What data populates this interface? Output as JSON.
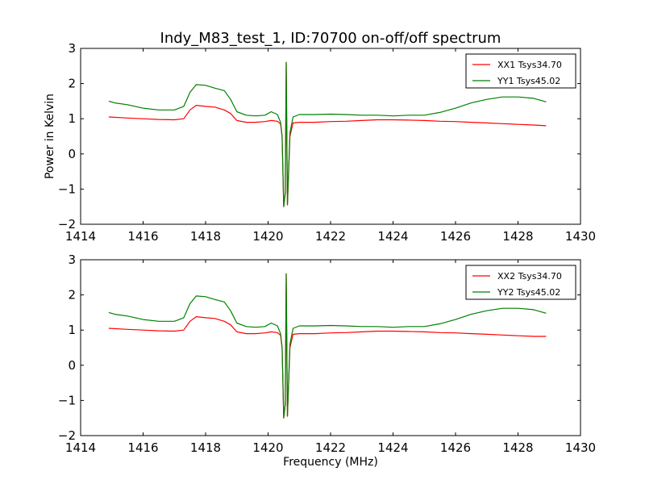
{
  "title": "Indy_M83_test_1, ID:70700 on-off/off spectrum",
  "xlabel": "Frequency (MHz)",
  "ylabel": "Power in Kelvin",
  "colors": {
    "xx": "#ff0000",
    "yy": "#008000",
    "axes": "#000000",
    "background": "#ffffff"
  },
  "chart_data": [
    {
      "type": "line",
      "xlim": [
        1414,
        1430
      ],
      "ylim": [
        -2,
        3
      ],
      "xticks": [
        1414,
        1416,
        1418,
        1420,
        1422,
        1424,
        1426,
        1428,
        1430
      ],
      "yticks": [
        -2,
        -1,
        0,
        1,
        2,
        3
      ],
      "ytick_labels": [
        "−2",
        "−1",
        "0",
        "1",
        "2",
        "3"
      ],
      "legend_position": "top-right",
      "grid": false,
      "series": [
        {
          "name": "XX1 Tsys34.70",
          "color": "#ff0000",
          "x": [
            1414.9,
            1415.5,
            1416.0,
            1416.5,
            1417.0,
            1417.3,
            1417.5,
            1417.7,
            1418.0,
            1418.3,
            1418.6,
            1418.8,
            1419.0,
            1419.3,
            1419.6,
            1419.9,
            1420.1,
            1420.3,
            1420.4,
            1420.45,
            1420.5,
            1420.55,
            1420.58,
            1420.62,
            1420.7,
            1420.8,
            1421.0,
            1421.5,
            1422.0,
            1422.5,
            1423.0,
            1423.5,
            1424.0,
            1424.5,
            1425.0,
            1425.5,
            1426.0,
            1426.5,
            1427.0,
            1427.5,
            1428.0,
            1428.5,
            1428.9
          ],
          "y": [
            1.05,
            1.02,
            1.0,
            0.98,
            0.97,
            1.0,
            1.25,
            1.38,
            1.35,
            1.33,
            1.25,
            1.15,
            0.95,
            0.9,
            0.9,
            0.92,
            0.95,
            0.93,
            0.85,
            0.5,
            -1.5,
            -1.1,
            2.6,
            -1.45,
            0.5,
            0.88,
            0.9,
            0.9,
            0.92,
            0.93,
            0.95,
            0.97,
            0.97,
            0.96,
            0.95,
            0.93,
            0.92,
            0.9,
            0.88,
            0.86,
            0.84,
            0.82,
            0.8
          ]
        },
        {
          "name": "YY1 Tsys45.02",
          "color": "#008000",
          "x": [
            1414.9,
            1415.1,
            1415.5,
            1416.0,
            1416.5,
            1417.0,
            1417.3,
            1417.5,
            1417.7,
            1418.0,
            1418.3,
            1418.6,
            1418.8,
            1419.0,
            1419.3,
            1419.6,
            1419.9,
            1420.1,
            1420.3,
            1420.4,
            1420.45,
            1420.5,
            1420.55,
            1420.58,
            1420.62,
            1420.7,
            1420.8,
            1421.0,
            1421.5,
            1422.0,
            1422.5,
            1423.0,
            1423.5,
            1424.0,
            1424.5,
            1425.0,
            1425.5,
            1426.0,
            1426.5,
            1427.0,
            1427.5,
            1428.0,
            1428.5,
            1428.9
          ],
          "y": [
            1.5,
            1.45,
            1.4,
            1.3,
            1.25,
            1.25,
            1.35,
            1.75,
            1.97,
            1.95,
            1.87,
            1.8,
            1.55,
            1.2,
            1.1,
            1.08,
            1.1,
            1.2,
            1.12,
            0.9,
            0.5,
            -1.5,
            -1.1,
            2.6,
            -1.45,
            0.6,
            1.05,
            1.12,
            1.12,
            1.13,
            1.12,
            1.1,
            1.1,
            1.08,
            1.1,
            1.1,
            1.18,
            1.3,
            1.45,
            1.55,
            1.62,
            1.62,
            1.58,
            1.48
          ]
        }
      ]
    },
    {
      "type": "line",
      "xlim": [
        1414,
        1430
      ],
      "ylim": [
        -2,
        3
      ],
      "xticks": [
        1414,
        1416,
        1418,
        1420,
        1422,
        1424,
        1426,
        1428,
        1430
      ],
      "yticks": [
        -2,
        -1,
        0,
        1,
        2,
        3
      ],
      "ytick_labels": [
        "−2",
        "−1",
        "0",
        "1",
        "2",
        "3"
      ],
      "legend_position": "top-right",
      "grid": false,
      "series": [
        {
          "name": "XX2 Tsys34.70",
          "color": "#ff0000",
          "x": [
            1414.9,
            1415.5,
            1416.0,
            1416.5,
            1417.0,
            1417.3,
            1417.5,
            1417.7,
            1418.0,
            1418.3,
            1418.6,
            1418.8,
            1419.0,
            1419.3,
            1419.6,
            1419.9,
            1420.1,
            1420.3,
            1420.4,
            1420.45,
            1420.5,
            1420.55,
            1420.58,
            1420.62,
            1420.7,
            1420.8,
            1421.0,
            1421.5,
            1422.0,
            1422.5,
            1423.0,
            1423.5,
            1424.0,
            1424.5,
            1425.0,
            1425.5,
            1426.0,
            1426.5,
            1427.0,
            1427.5,
            1428.0,
            1428.5,
            1428.9
          ],
          "y": [
            1.05,
            1.02,
            1.0,
            0.98,
            0.97,
            1.0,
            1.25,
            1.38,
            1.35,
            1.33,
            1.25,
            1.15,
            0.95,
            0.9,
            0.9,
            0.92,
            0.95,
            0.93,
            0.85,
            0.5,
            -1.5,
            -1.1,
            2.6,
            -1.45,
            0.5,
            0.88,
            0.9,
            0.9,
            0.92,
            0.93,
            0.95,
            0.97,
            0.97,
            0.96,
            0.95,
            0.93,
            0.92,
            0.9,
            0.88,
            0.86,
            0.84,
            0.82,
            0.82
          ]
        },
        {
          "name": "YY2 Tsys45.02",
          "color": "#008000",
          "x": [
            1414.9,
            1415.1,
            1415.5,
            1416.0,
            1416.5,
            1417.0,
            1417.3,
            1417.5,
            1417.7,
            1418.0,
            1418.3,
            1418.6,
            1418.8,
            1419.0,
            1419.3,
            1419.6,
            1419.9,
            1420.1,
            1420.3,
            1420.4,
            1420.45,
            1420.5,
            1420.55,
            1420.58,
            1420.62,
            1420.7,
            1420.8,
            1421.0,
            1421.5,
            1422.0,
            1422.5,
            1423.0,
            1423.5,
            1424.0,
            1424.5,
            1425.0,
            1425.5,
            1426.0,
            1426.5,
            1427.0,
            1427.5,
            1428.0,
            1428.5,
            1428.9
          ],
          "y": [
            1.5,
            1.45,
            1.4,
            1.3,
            1.25,
            1.25,
            1.35,
            1.75,
            1.97,
            1.95,
            1.87,
            1.8,
            1.55,
            1.2,
            1.1,
            1.08,
            1.1,
            1.2,
            1.12,
            0.9,
            0.5,
            -1.5,
            -1.1,
            2.6,
            -1.45,
            0.6,
            1.05,
            1.12,
            1.12,
            1.13,
            1.12,
            1.1,
            1.1,
            1.08,
            1.1,
            1.1,
            1.18,
            1.3,
            1.45,
            1.55,
            1.62,
            1.62,
            1.58,
            1.48
          ]
        }
      ]
    }
  ]
}
